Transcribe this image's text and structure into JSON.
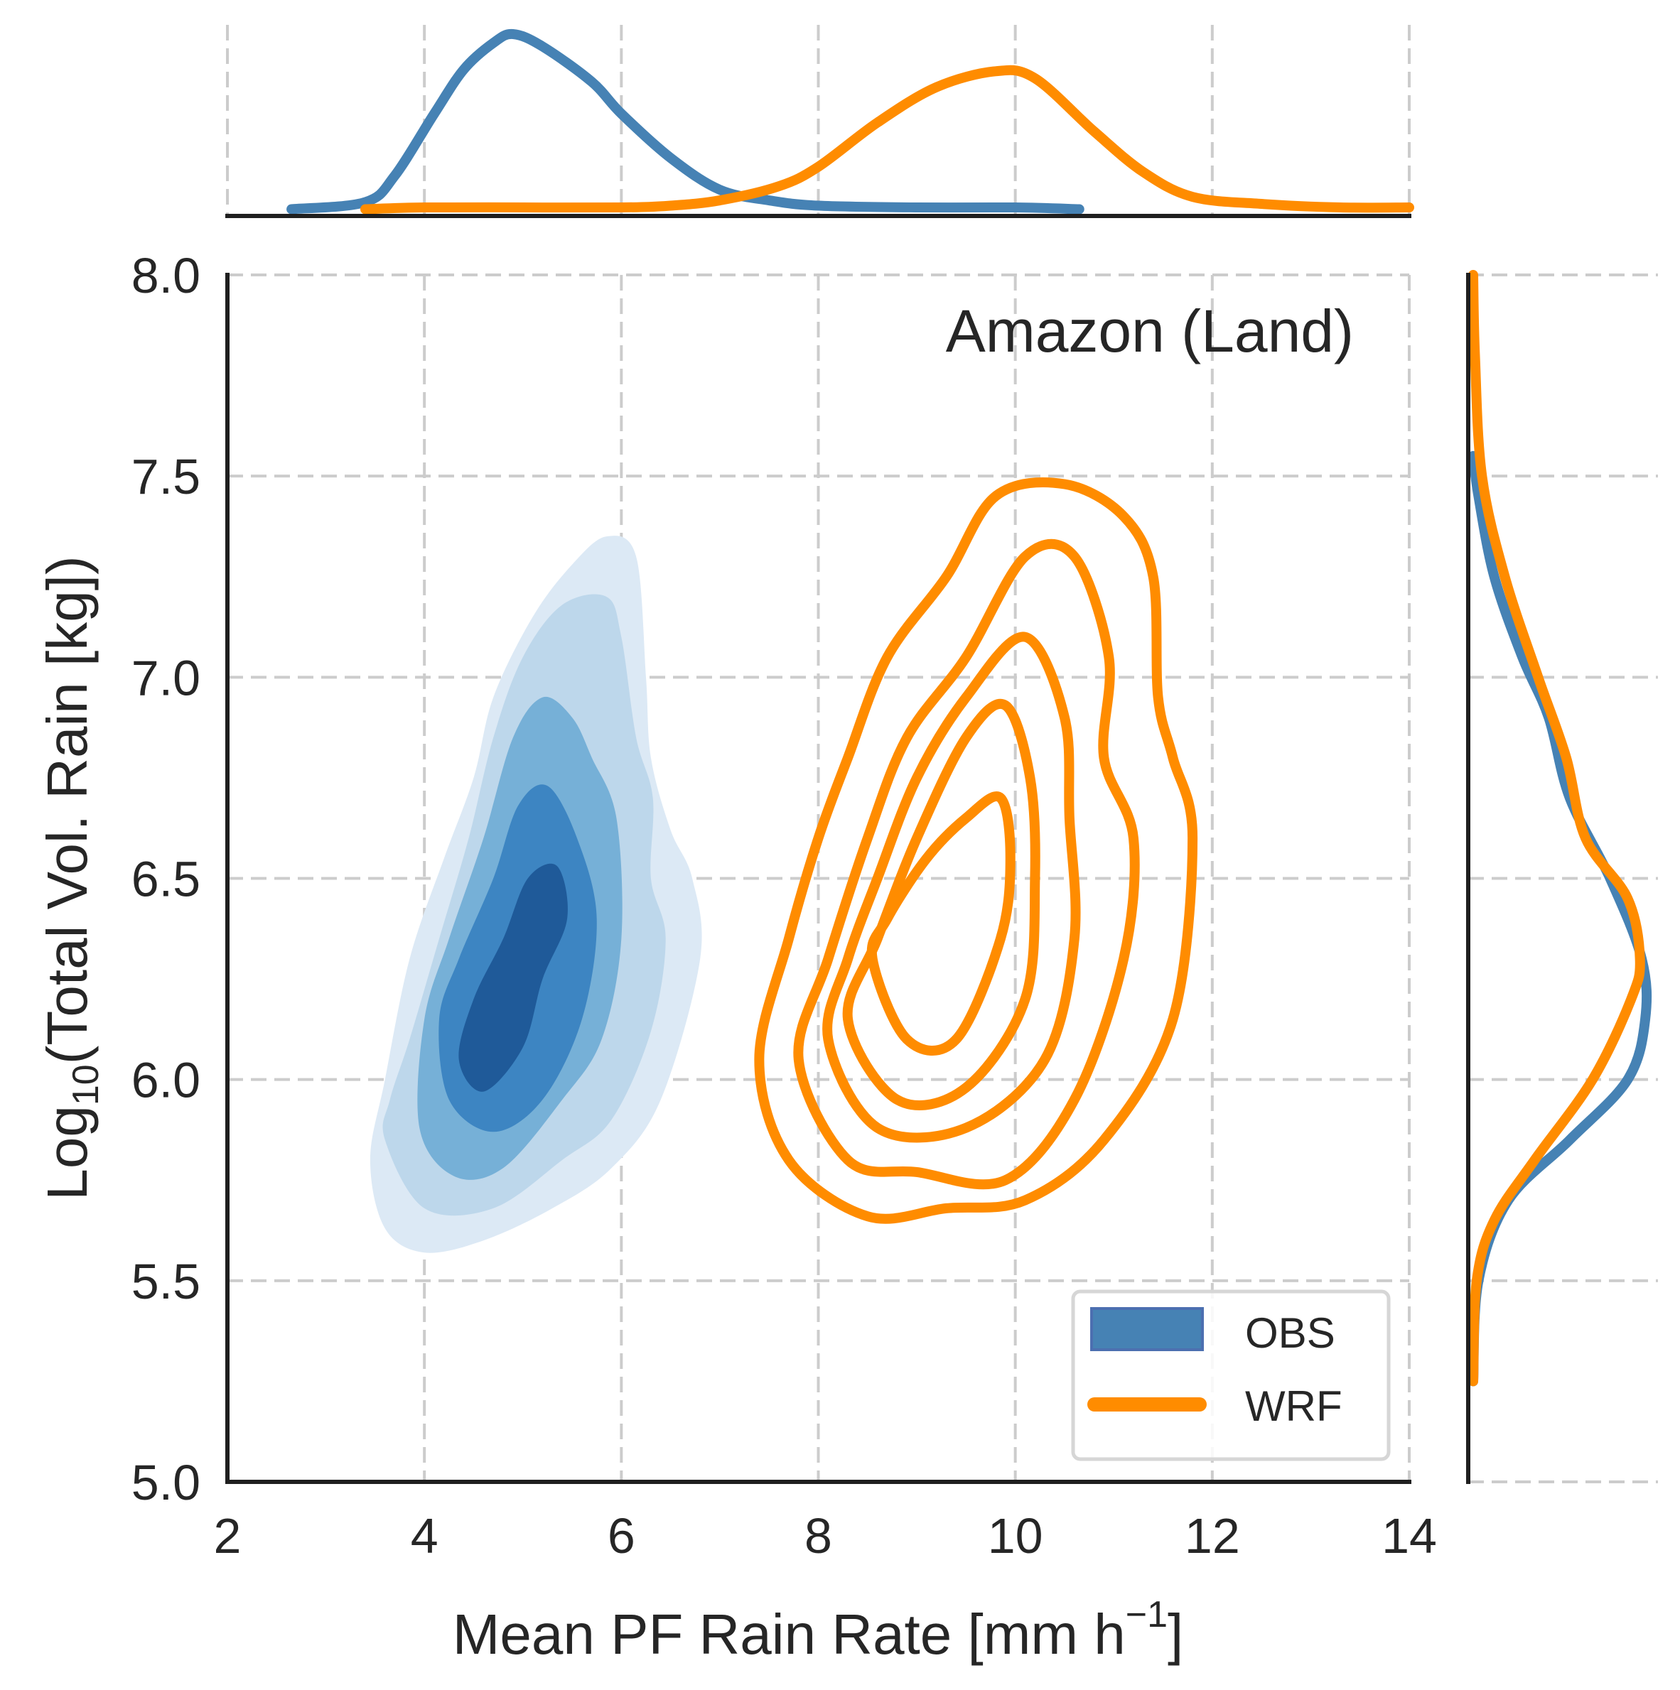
{
  "chart_data": {
    "type": "jointplot-kde",
    "annotation": "Amazon (Land)",
    "xlabel": "Mean PF Rain Rate [mm h⁻¹]",
    "xlabel_main": "Mean PF Rain Rate [mm h",
    "xlabel_sup": "−1",
    "xlabel_end": "]",
    "ylabel_pre": "Log",
    "ylabel_sub": "10",
    "ylabel_post": "(Total Vol. Rain [kg])",
    "xlim": [
      2,
      14
    ],
    "ylim": [
      5,
      8
    ],
    "xticks": [
      2,
      4,
      6,
      8,
      10,
      12,
      14
    ],
    "xtick_labels": [
      "2",
      "4",
      "6",
      "8",
      "10",
      "12",
      "14"
    ],
    "yticks": [
      5.0,
      5.5,
      6.0,
      6.5,
      7.0,
      7.5,
      8.0
    ],
    "ytick_labels": [
      "5.0",
      "5.5",
      "6.0",
      "6.5",
      "7.0",
      "7.5",
      "8.0"
    ],
    "grid": true,
    "legend": {
      "placement": "lower-right",
      "entries": [
        {
          "label": "OBS",
          "style": "filled",
          "color": "#4682b4"
        },
        {
          "label": "WRF",
          "style": "line",
          "color": "#ff8c00"
        }
      ]
    },
    "series": [
      {
        "name": "OBS",
        "kind": "filled-contour",
        "colors": [
          "#dce9f5",
          "#bdd7eb",
          "#76b0d7",
          "#3d85c2",
          "#1f5a99"
        ],
        "levels": [
          [
            [
              3.45,
              5.8
            ],
            [
              3.6,
              5.63
            ],
            [
              4.0,
              5.57
            ],
            [
              4.6,
              5.6
            ],
            [
              5.3,
              5.68
            ],
            [
              5.9,
              5.78
            ],
            [
              6.4,
              5.95
            ],
            [
              6.8,
              6.3
            ],
            [
              6.72,
              6.5
            ],
            [
              6.5,
              6.62
            ],
            [
              6.3,
              6.8
            ],
            [
              6.25,
              7.0
            ],
            [
              6.15,
              7.3
            ],
            [
              5.85,
              7.35
            ],
            [
              5.5,
              7.28
            ],
            [
              5.1,
              7.15
            ],
            [
              4.7,
              6.95
            ],
            [
              4.5,
              6.75
            ],
            [
              4.2,
              6.55
            ],
            [
              3.85,
              6.3
            ],
            [
              3.6,
              6.0
            ]
          ],
          [
            [
              3.6,
              5.85
            ],
            [
              4.0,
              5.68
            ],
            [
              4.7,
              5.68
            ],
            [
              5.4,
              5.8
            ],
            [
              5.9,
              5.9
            ],
            [
              6.3,
              6.12
            ],
            [
              6.45,
              6.35
            ],
            [
              6.3,
              6.5
            ],
            [
              6.32,
              6.7
            ],
            [
              6.15,
              6.85
            ],
            [
              6.0,
              7.1
            ],
            [
              5.85,
              7.2
            ],
            [
              5.4,
              7.18
            ],
            [
              5.0,
              7.05
            ],
            [
              4.7,
              6.85
            ],
            [
              4.45,
              6.6
            ],
            [
              4.15,
              6.35
            ],
            [
              3.85,
              6.1
            ],
            [
              3.65,
              5.95
            ]
          ],
          [
            [
              3.95,
              5.88
            ],
            [
              4.3,
              5.76
            ],
            [
              4.8,
              5.78
            ],
            [
              5.4,
              5.95
            ],
            [
              5.8,
              6.1
            ],
            [
              6.0,
              6.35
            ],
            [
              5.95,
              6.65
            ],
            [
              5.7,
              6.8
            ],
            [
              5.5,
              6.9
            ],
            [
              5.2,
              6.95
            ],
            [
              4.9,
              6.85
            ],
            [
              4.6,
              6.6
            ],
            [
              4.25,
              6.35
            ],
            [
              4.0,
              6.15
            ]
          ],
          [
            [
              4.25,
              5.95
            ],
            [
              4.7,
              5.87
            ],
            [
              5.2,
              5.95
            ],
            [
              5.6,
              6.15
            ],
            [
              5.75,
              6.4
            ],
            [
              5.55,
              6.6
            ],
            [
              5.25,
              6.73
            ],
            [
              4.95,
              6.68
            ],
            [
              4.7,
              6.5
            ],
            [
              4.35,
              6.3
            ],
            [
              4.15,
              6.15
            ]
          ],
          [
            [
              4.35,
              6.05
            ],
            [
              4.6,
              5.97
            ],
            [
              5.0,
              6.08
            ],
            [
              5.2,
              6.25
            ],
            [
              5.45,
              6.4
            ],
            [
              5.35,
              6.53
            ],
            [
              5.05,
              6.5
            ],
            [
              4.8,
              6.35
            ],
            [
              4.5,
              6.2
            ]
          ]
        ]
      },
      {
        "name": "WRF",
        "kind": "line-contour",
        "color": "#ff8c00",
        "levels": [
          [
            [
              7.4,
              6.05
            ],
            [
              7.7,
              5.8
            ],
            [
              8.5,
              5.66
            ],
            [
              9.3,
              5.68
            ],
            [
              10.1,
              5.7
            ],
            [
              10.9,
              5.85
            ],
            [
              11.6,
              6.15
            ],
            [
              11.8,
              6.6
            ],
            [
              11.6,
              6.8
            ],
            [
              11.45,
              6.95
            ],
            [
              11.4,
              7.25
            ],
            [
              11.1,
              7.4
            ],
            [
              10.5,
              7.48
            ],
            [
              9.8,
              7.45
            ],
            [
              9.3,
              7.25
            ],
            [
              8.7,
              7.05
            ],
            [
              8.3,
              6.8
            ],
            [
              8.0,
              6.6
            ],
            [
              7.7,
              6.35
            ]
          ],
          [
            [
              7.8,
              6.05
            ],
            [
              8.3,
              5.8
            ],
            [
              9.0,
              5.77
            ],
            [
              9.9,
              5.75
            ],
            [
              10.6,
              5.95
            ],
            [
              11.1,
              6.3
            ],
            [
              11.2,
              6.6
            ],
            [
              10.9,
              6.8
            ],
            [
              10.95,
              7.05
            ],
            [
              10.6,
              7.3
            ],
            [
              10.1,
              7.3
            ],
            [
              9.5,
              7.05
            ],
            [
              8.9,
              6.85
            ],
            [
              8.5,
              6.6
            ],
            [
              8.1,
              6.3
            ]
          ],
          [
            [
              8.1,
              6.1
            ],
            [
              8.6,
              5.88
            ],
            [
              9.5,
              5.88
            ],
            [
              10.3,
              6.05
            ],
            [
              10.6,
              6.35
            ],
            [
              10.55,
              6.65
            ],
            [
              10.5,
              6.9
            ],
            [
              10.1,
              7.1
            ],
            [
              9.5,
              6.95
            ],
            [
              9.0,
              6.75
            ],
            [
              8.6,
              6.5
            ],
            [
              8.3,
              6.3
            ]
          ],
          [
            [
              8.3,
              6.15
            ],
            [
              8.8,
              5.95
            ],
            [
              9.5,
              5.98
            ],
            [
              10.1,
              6.2
            ],
            [
              10.2,
              6.5
            ],
            [
              10.15,
              6.75
            ],
            [
              9.9,
              6.93
            ],
            [
              9.5,
              6.85
            ],
            [
              9.0,
              6.6
            ],
            [
              8.6,
              6.35
            ]
          ],
          [
            [
              8.55,
              6.3
            ],
            [
              8.9,
              6.1
            ],
            [
              9.4,
              6.1
            ],
            [
              9.85,
              6.35
            ],
            [
              9.95,
              6.55
            ],
            [
              9.85,
              6.7
            ],
            [
              9.5,
              6.65
            ],
            [
              9.1,
              6.55
            ],
            [
              8.7,
              6.4
            ]
          ]
        ]
      }
    ],
    "marginal_x": {
      "series": [
        {
          "name": "OBS",
          "color": "#4682b4",
          "x": [
            2.65,
            3.4,
            3.7,
            4.1,
            4.4,
            4.7,
            4.9,
            5.2,
            5.7,
            6.0,
            6.5,
            7.0,
            7.5,
            8.0,
            9.0,
            10.0,
            10.65
          ],
          "density": [
            0.01,
            0.05,
            0.2,
            0.55,
            0.8,
            0.95,
            1.0,
            0.93,
            0.73,
            0.55,
            0.3,
            0.12,
            0.06,
            0.03,
            0.02,
            0.02,
            0.01
          ]
        },
        {
          "name": "WRF",
          "color": "#ff8c00",
          "x": [
            3.4,
            4.0,
            5.0,
            6.0,
            6.5,
            7.0,
            7.6,
            8.0,
            8.6,
            9.2,
            9.8,
            10.2,
            10.8,
            11.3,
            11.8,
            12.5,
            13.3,
            14.0
          ],
          "density": [
            0.01,
            0.02,
            0.02,
            0.02,
            0.03,
            0.06,
            0.14,
            0.25,
            0.5,
            0.7,
            0.79,
            0.75,
            0.45,
            0.22,
            0.08,
            0.04,
            0.02,
            0.02
          ]
        }
      ]
    },
    "marginal_y": {
      "series": [
        {
          "name": "OBS",
          "color": "#4682b4",
          "y": [
            5.25,
            5.5,
            5.7,
            5.85,
            6.0,
            6.15,
            6.3,
            6.5,
            6.7,
            6.9,
            7.05,
            7.25,
            7.45,
            7.55
          ],
          "density": [
            0.0,
            0.03,
            0.2,
            0.55,
            0.88,
            0.98,
            0.96,
            0.78,
            0.55,
            0.43,
            0.28,
            0.12,
            0.03,
            0.0
          ]
        },
        {
          "name": "WRF",
          "color": "#ff8c00",
          "y": [
            5.25,
            5.5,
            5.65,
            5.8,
            6.0,
            6.2,
            6.3,
            6.45,
            6.6,
            6.8,
            7.0,
            7.25,
            7.5,
            7.8,
            8.0
          ],
          "density": [
            0.0,
            0.02,
            0.12,
            0.35,
            0.68,
            0.9,
            0.95,
            0.88,
            0.64,
            0.53,
            0.37,
            0.18,
            0.05,
            0.01,
            0.0
          ]
        }
      ]
    }
  }
}
